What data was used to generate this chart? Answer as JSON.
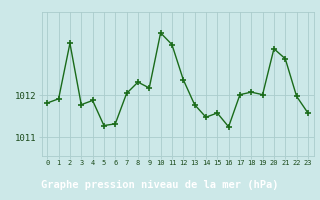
{
  "x": [
    0,
    1,
    2,
    3,
    4,
    5,
    6,
    7,
    8,
    9,
    10,
    11,
    12,
    13,
    14,
    15,
    16,
    17,
    18,
    19,
    20,
    21,
    22,
    23
  ],
  "y": [
    1011.82,
    1011.92,
    1013.25,
    1011.78,
    1011.88,
    1011.28,
    1011.32,
    1012.05,
    1012.32,
    1012.18,
    1013.5,
    1013.22,
    1012.38,
    1011.78,
    1011.48,
    1011.58,
    1011.25,
    1012.02,
    1012.08,
    1012.02,
    1013.12,
    1012.88,
    1011.98,
    1011.58
  ],
  "line_color": "#1a6b1a",
  "marker_color": "#1a6b1a",
  "bg_color": "#cce8e8",
  "grid_color": "#aacccc",
  "plot_bg_color": "#cce8e8",
  "bottom_bar_color": "#2a5a2a",
  "bottom_text_color": "#ffffff",
  "axis_label_color": "#1a4a1a",
  "title": "Graphe pression niveau de la mer (hPa)",
  "ytick_labels": [
    "1011",
    "1012"
  ],
  "ytick_positions": [
    1011,
    1012
  ],
  "ylim_min": 1010.55,
  "ylim_max": 1014.0,
  "xtick_labels": [
    "0",
    "1",
    "2",
    "3",
    "4",
    "5",
    "6",
    "7",
    "8",
    "9",
    "10",
    "11",
    "12",
    "13",
    "14",
    "15",
    "16",
    "17",
    "18",
    "19",
    "20",
    "21",
    "22",
    "23"
  ],
  "linewidth": 1.0,
  "markersize": 4.0,
  "bottom_bar_height": 0.18
}
